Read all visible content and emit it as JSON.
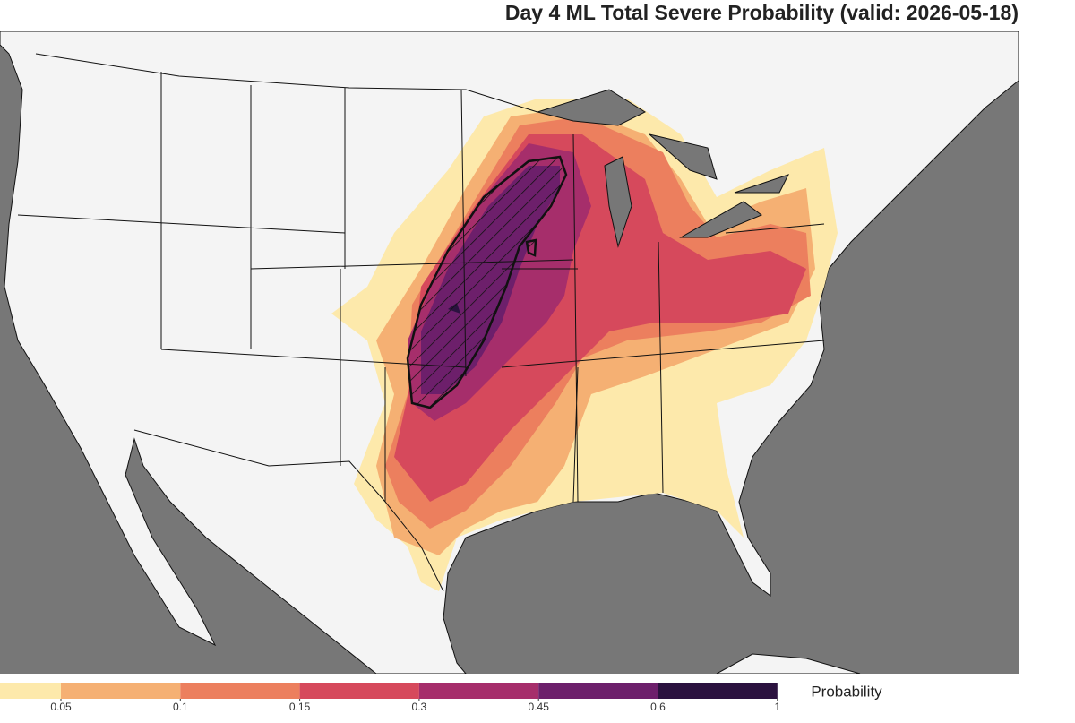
{
  "title": "Day 4 ML Total Severe Probability (valid: 2026-05-18)",
  "colorbar": {
    "label": "Probability",
    "ticks": [
      0.05,
      0.1,
      0.15,
      0.3,
      0.45,
      0.6,
      1
    ],
    "colors": [
      "#fde9ab",
      "#f5b073",
      "#ec7f5e",
      "#d6495c",
      "#a62e6b",
      "#6d1f6b",
      "#2b123f"
    ]
  }
}
